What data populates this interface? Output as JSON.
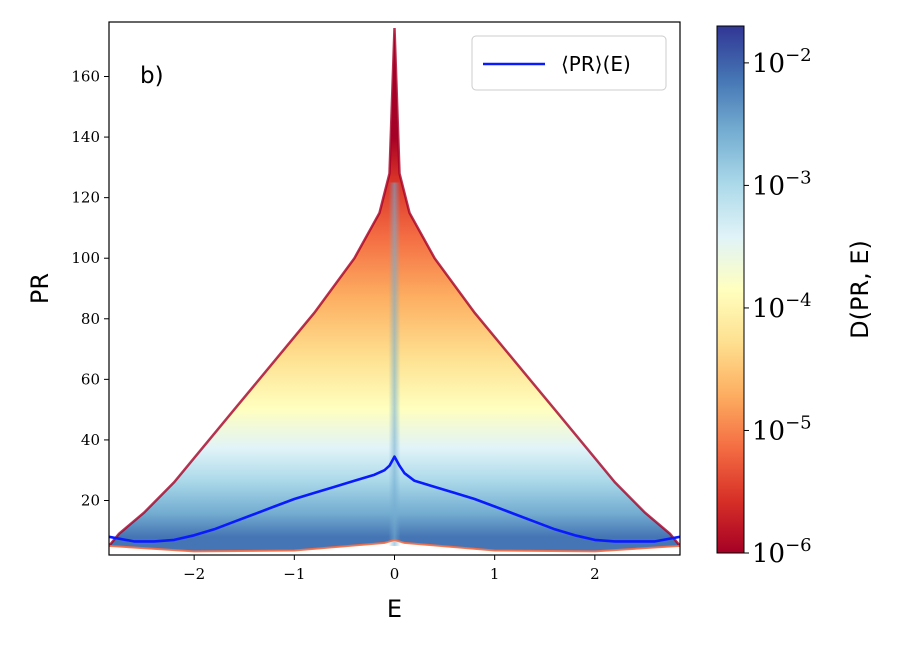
{
  "chart_data": {
    "type": "heatmap",
    "panel_label": "b)",
    "xlabel": "E",
    "ylabel": "PR",
    "xlim": [
      -2.85,
      2.85
    ],
    "ylim": [
      2,
      178
    ],
    "x_ticks": [
      -2,
      -1,
      0,
      1,
      2
    ],
    "x_tick_labels": [
      "−2",
      "−1",
      "0",
      "1",
      "2"
    ],
    "y_ticks": [
      20,
      40,
      60,
      80,
      100,
      120,
      140,
      160
    ],
    "y_tick_labels": [
      "20",
      "40",
      "60",
      "80",
      "100",
      "120",
      "140",
      "160"
    ],
    "legend": {
      "label": "⟨PR⟩(E)",
      "placement": "top-right"
    },
    "series": [
      {
        "name": "⟨PR⟩(E)",
        "color": "#0a1aff",
        "x": [
          -2.85,
          -2.6,
          -2.4,
          -2.2,
          -2.0,
          -1.8,
          -1.6,
          -1.4,
          -1.2,
          -1.0,
          -0.8,
          -0.6,
          -0.4,
          -0.2,
          -0.1,
          -0.05,
          0.0,
          0.05,
          0.1,
          0.2,
          0.4,
          0.6,
          0.8,
          1.0,
          1.2,
          1.4,
          1.6,
          1.8,
          2.0,
          2.2,
          2.4,
          2.6,
          2.85
        ],
        "y": [
          8,
          6.5,
          6.5,
          7,
          8.5,
          10.5,
          13,
          15.5,
          18,
          20.5,
          22.5,
          24.5,
          26.5,
          28.5,
          30,
          31.5,
          34.5,
          31.5,
          29,
          26.5,
          24.5,
          22.5,
          20.5,
          18,
          15.5,
          13,
          10.5,
          8.5,
          7,
          6.5,
          6.5,
          6.5,
          8
        ]
      }
    ],
    "density": {
      "label": "D(PR, E)",
      "scale": "log",
      "range": [
        1e-06,
        0.02
      ],
      "colormap": [
        "#a50026",
        "#d73027",
        "#f46d43",
        "#fdae61",
        "#fee090",
        "#ffffbf",
        "#e0f3f8",
        "#abd9e9",
        "#74add1",
        "#4575b4",
        "#313695"
      ],
      "colorbar_ticks": [
        1e-06,
        1e-05,
        0.0001,
        0.001,
        0.01
      ],
      "colorbar_tick_bases": [
        "10",
        "10",
        "10",
        "10",
        "10"
      ],
      "colorbar_tick_exponents": [
        "−6",
        "−5",
        "−4",
        "−3",
        "−2"
      ]
    }
  }
}
